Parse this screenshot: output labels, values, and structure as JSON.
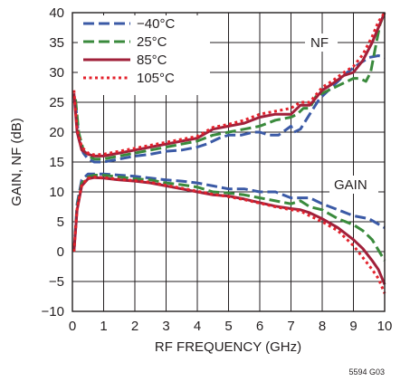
{
  "chart_data": {
    "type": "line",
    "xlabel": "RF FREQUENCY (GHz)",
    "ylabel": "GAIN, NF (dB)",
    "xlim": [
      0,
      10
    ],
    "ylim": [
      -10,
      40
    ],
    "xticks": [
      "0",
      "1",
      "2",
      "3",
      "4",
      "5",
      "6",
      "7",
      "8",
      "9",
      "10"
    ],
    "yticks": [
      "40",
      "35",
      "30",
      "25",
      "20",
      "15",
      "10",
      "5",
      "0",
      "−5",
      "−10"
    ],
    "grid": true,
    "legend_position": "top-left",
    "annotations": {
      "nf": "NF",
      "gain": "GAIN"
    },
    "figure_id": "5594 G03",
    "legend": [
      {
        "name": "−40°C",
        "color": "#3b5aa6",
        "dash": "dashed"
      },
      {
        "name": "25°C",
        "color": "#3a8a3c",
        "dash": "dashed"
      },
      {
        "name": "85°C",
        "color": "#a1203a",
        "dash": "solid"
      },
      {
        "name": "105°C",
        "color": "#e3222c",
        "dash": "dotted"
      }
    ],
    "series": [
      {
        "name": "−40°C",
        "quantity": "NF",
        "color": "#3b5aa6",
        "dash": "dashed",
        "x": [
          0.1,
          0.2,
          0.35,
          0.5,
          0.7,
          1,
          1.5,
          2,
          2.5,
          3,
          3.5,
          4,
          4.3,
          4.7,
          5,
          5.4,
          5.8,
          6,
          6.3,
          6.6,
          7,
          7.1,
          7.3,
          7.6,
          7.9,
          8.2,
          8.5,
          8.8,
          9.2,
          9.5,
          9.8,
          10
        ],
        "y": [
          25,
          19,
          16.5,
          15.5,
          15,
          15,
          15.5,
          16,
          16.3,
          16.8,
          17,
          17.5,
          18,
          19,
          19.5,
          19.5,
          20,
          20,
          19.5,
          19.5,
          21,
          20,
          20.5,
          23,
          25.5,
          27,
          28.5,
          30,
          31.5,
          32.5,
          32.8,
          32.5
        ]
      },
      {
        "name": "25°C",
        "quantity": "NF",
        "color": "#3a8a3c",
        "dash": "dashed",
        "x": [
          0.1,
          0.2,
          0.35,
          0.5,
          0.7,
          1,
          1.5,
          2,
          2.5,
          3,
          3.5,
          4,
          4.5,
          5,
          5.5,
          6,
          6.5,
          7,
          7.2,
          7.4,
          7.6,
          7.8,
          8.2,
          8.6,
          9,
          9.2,
          9.4,
          9.55,
          9.7,
          9.85,
          10
        ],
        "y": [
          25.5,
          20,
          17,
          16,
          15.5,
          15.5,
          16,
          16.5,
          17,
          17.5,
          18,
          18.5,
          19.5,
          20,
          20.5,
          21,
          22,
          22.5,
          23,
          24,
          24,
          26,
          27,
          28,
          29,
          29,
          28.5,
          30,
          34,
          38,
          40
        ]
      },
      {
        "name": "85°C",
        "quantity": "NF",
        "color": "#a1203a",
        "dash": "solid",
        "x": [
          0.05,
          0.15,
          0.3,
          0.5,
          0.7,
          1,
          1.5,
          2,
          2.5,
          3,
          3.5,
          4,
          4.5,
          5,
          5.5,
          6,
          6.5,
          7,
          7.3,
          7.6,
          8,
          8.3,
          8.7,
          9,
          9.3,
          9.6,
          9.8,
          10
        ],
        "y": [
          26.5,
          20,
          17,
          16.3,
          16,
          16,
          16.5,
          17,
          17.5,
          18,
          18.5,
          19,
          20.5,
          21,
          21.5,
          22.5,
          23,
          23,
          24.5,
          24.5,
          27,
          28,
          29.5,
          30,
          32,
          35,
          37.5,
          40
        ]
      },
      {
        "name": "105°C",
        "quantity": "NF",
        "color": "#e3222c",
        "dash": "dotted",
        "x": [
          0.05,
          0.15,
          0.3,
          0.5,
          0.7,
          1,
          1.5,
          2,
          2.5,
          3,
          3.5,
          4,
          4.5,
          5,
          5.5,
          6,
          6.5,
          7,
          7.3,
          7.6,
          8,
          8.3,
          8.7,
          9,
          9.3,
          9.6,
          9.8,
          10
        ],
        "y": [
          27,
          20.5,
          17.5,
          16.5,
          16.2,
          16.3,
          16.8,
          17.3,
          17.8,
          18.3,
          18.8,
          19.3,
          20.8,
          21.3,
          22,
          23,
          23.5,
          24,
          25,
          25,
          27.5,
          28.5,
          30,
          31,
          33,
          36,
          38.5,
          40
        ]
      },
      {
        "name": "−40°C",
        "quantity": "GAIN",
        "color": "#3b5aa6",
        "dash": "dashed",
        "x": [
          0.05,
          0.15,
          0.3,
          0.5,
          0.7,
          1,
          1.5,
          2,
          2.5,
          3,
          3.5,
          4,
          4.5,
          5,
          5.5,
          6,
          6.5,
          7,
          7.3,
          7.6,
          8,
          8.5,
          9,
          9.5,
          10
        ],
        "y": [
          0,
          8,
          12,
          13,
          13,
          13,
          12.8,
          12.6,
          12.3,
          12,
          11.8,
          11.5,
          11,
          10.5,
          10.5,
          10,
          10,
          9,
          9,
          9,
          8,
          7,
          6,
          5.5,
          4
        ]
      },
      {
        "name": "25°C",
        "quantity": "GAIN",
        "color": "#3a8a3c",
        "dash": "dashed",
        "x": [
          0.05,
          0.15,
          0.3,
          0.5,
          0.7,
          1,
          1.5,
          2,
          2.5,
          3,
          3.5,
          4,
          4.5,
          5,
          5.5,
          6,
          6.5,
          7,
          7.3,
          7.6,
          8,
          8.5,
          9,
          9.3,
          9.6,
          10
        ],
        "y": [
          0,
          7.5,
          11.5,
          12.5,
          12.8,
          12.8,
          12.5,
          12.2,
          12,
          11.5,
          11.2,
          10.8,
          10,
          9.8,
          9.5,
          9,
          8.5,
          8,
          8.5,
          7.5,
          7,
          5.5,
          4.5,
          3.5,
          2,
          -1.5
        ]
      },
      {
        "name": "85°C",
        "quantity": "GAIN",
        "color": "#a1203a",
        "dash": "solid",
        "x": [
          0.05,
          0.15,
          0.3,
          0.5,
          0.7,
          1,
          1.5,
          2,
          2.5,
          3,
          3.5,
          4,
          4.5,
          5,
          5.5,
          6,
          6.5,
          7,
          7.3,
          7.6,
          8,
          8.5,
          9,
          9.3,
          9.6,
          9.8,
          10
        ],
        "y": [
          0,
          7,
          11,
          12.2,
          12.4,
          12.3,
          12,
          11.8,
          11.5,
          11,
          10.5,
          10,
          9.5,
          9.3,
          8.8,
          8.2,
          7.6,
          7.2,
          7,
          6.5,
          5.5,
          4,
          2,
          0.5,
          -1.5,
          -3,
          -5.5
        ]
      },
      {
        "name": "105°C",
        "quantity": "GAIN",
        "color": "#e3222c",
        "dash": "dotted",
        "x": [
          0.05,
          0.15,
          0.3,
          0.5,
          0.7,
          1,
          1.5,
          2,
          2.5,
          3,
          3.5,
          4,
          4.5,
          5,
          5.5,
          6,
          6.5,
          7,
          7.3,
          7.6,
          8,
          8.5,
          9,
          9.3,
          9.6,
          9.8,
          10
        ],
        "y": [
          0,
          7.2,
          11.2,
          12.3,
          12.5,
          12.4,
          12.1,
          11.9,
          11.6,
          11.1,
          10.6,
          10.1,
          9.6,
          9.2,
          8.7,
          8.1,
          7.5,
          7,
          6.8,
          6,
          5,
          3.5,
          1,
          -1,
          -3,
          -4.5,
          -7
        ]
      }
    ]
  }
}
